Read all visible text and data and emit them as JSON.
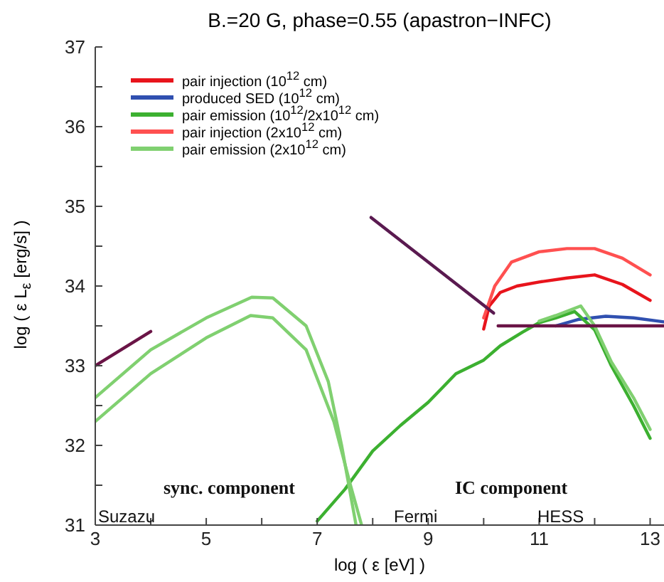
{
  "chart_data": {
    "type": "line",
    "title": "B.=20 G, phase=0.55 (apastron−INFC)",
    "xlabel": "log ( ε [eV] )",
    "ylabel": "log ( ε L$_{ε}$ [erg/s] )",
    "xlim": [
      3,
      13.25
    ],
    "xticks": [
      3,
      {
        "value": 4,
        "label": null
      },
      5,
      {
        "value": 6,
        "label": null
      },
      7,
      {
        "value": 8,
        "label": null
      },
      9,
      {
        "value": 10,
        "label": null
      },
      11,
      {
        "value": 12,
        "label": null
      },
      13
    ],
    "ylim": [
      31,
      37
    ],
    "yticks": [
      31,
      {
        "value": 31.5,
        "label": null
      },
      32,
      {
        "value": 32.5,
        "label": null
      },
      33,
      {
        "value": 33.5,
        "label": null
      },
      34,
      {
        "value": 34.5,
        "label": null
      },
      35,
      {
        "value": 35.5,
        "label": null
      },
      36,
      {
        "value": 36.5,
        "label": null
      },
      37
    ],
    "legend": "top left",
    "marker": "none",
    "line_style": "solid",
    "annotations": [
      "sync. component",
      "IC component",
      "Suzazu",
      "Fermi",
      "HESS"
    ],
    "series": [
      {
        "name": "pair injection (10$^{12}$ cm)",
        "color": "#e8141c",
        "x": [
          10,
          10.1,
          10.3,
          10.6,
          11,
          11.5,
          12,
          12.5,
          13
        ],
        "values": [
          33.46,
          33.75,
          33.92,
          34.0,
          34.05,
          34.1,
          34.14,
          34.02,
          33.82
        ]
      },
      {
        "name": "produced SED (10$^{12}$ cm)",
        "color": "#3050b0",
        "x": [
          11.3,
          11.7,
          12.2,
          12.7,
          13.25
        ],
        "values": [
          33.5,
          33.58,
          33.62,
          33.6,
          33.55
        ]
      },
      {
        "name": "pair emission (10$^{12}$/2x10$^{12}$ cm)",
        "color": "#3cb030",
        "x": [
          7,
          7.5,
          8,
          8.5,
          9,
          9.5,
          10,
          10.3,
          10.7,
          11,
          11.3,
          11.64,
          12,
          12.3,
          12.7,
          13
        ],
        "values": [
          31.05,
          31.45,
          31.93,
          32.25,
          32.54,
          32.9,
          33.07,
          33.25,
          33.42,
          33.54,
          33.6,
          33.68,
          33.45,
          33.0,
          32.5,
          32.09
        ]
      },
      {
        "name": "pair injection (2x10$^{12}$ cm)",
        "color": "#ff5050",
        "x": [
          10,
          10.2,
          10.5,
          11,
          11.5,
          12,
          12.5,
          13
        ],
        "values": [
          33.6,
          34.0,
          34.3,
          34.43,
          34.47,
          34.47,
          34.35,
          34.14
        ]
      },
      {
        "name": "pair emission (2x10$^{12}$ cm)",
        "color": "#80d070",
        "x": [
          3,
          4,
          5,
          5.82,
          6.2,
          6.8,
          7.2,
          7.44,
          7.7
        ],
        "values": [
          32.6,
          33.2,
          33.6,
          33.86,
          33.85,
          33.5,
          32.8,
          32.0,
          31.0
        ]
      },
      {
        "color": "#80d070",
        "x": [
          3,
          4,
          5,
          5.8,
          6.2,
          6.8,
          7.3,
          7.6,
          7.8
        ],
        "values": [
          32.3,
          32.9,
          33.35,
          33.63,
          33.6,
          33.2,
          32.3,
          31.5,
          31.0
        ]
      },
      {
        "color": "#80d070",
        "x": [
          11,
          11.3,
          11.75,
          12,
          12.3,
          12.7,
          13
        ],
        "values": [
          33.56,
          33.63,
          33.75,
          33.5,
          33.05,
          32.6,
          32.2
        ]
      },
      {
        "color": "#6a1446",
        "x": [
          3,
          4
        ],
        "values": [
          33.0,
          33.43
        ]
      },
      {
        "color": "#5a1a50",
        "x": [
          7.97,
          10.18
        ],
        "values": [
          34.86,
          33.66
        ]
      },
      {
        "color": "#6a1446",
        "x": [
          10.26,
          13.25
        ],
        "values": [
          33.5,
          33.5
        ]
      }
    ]
  }
}
